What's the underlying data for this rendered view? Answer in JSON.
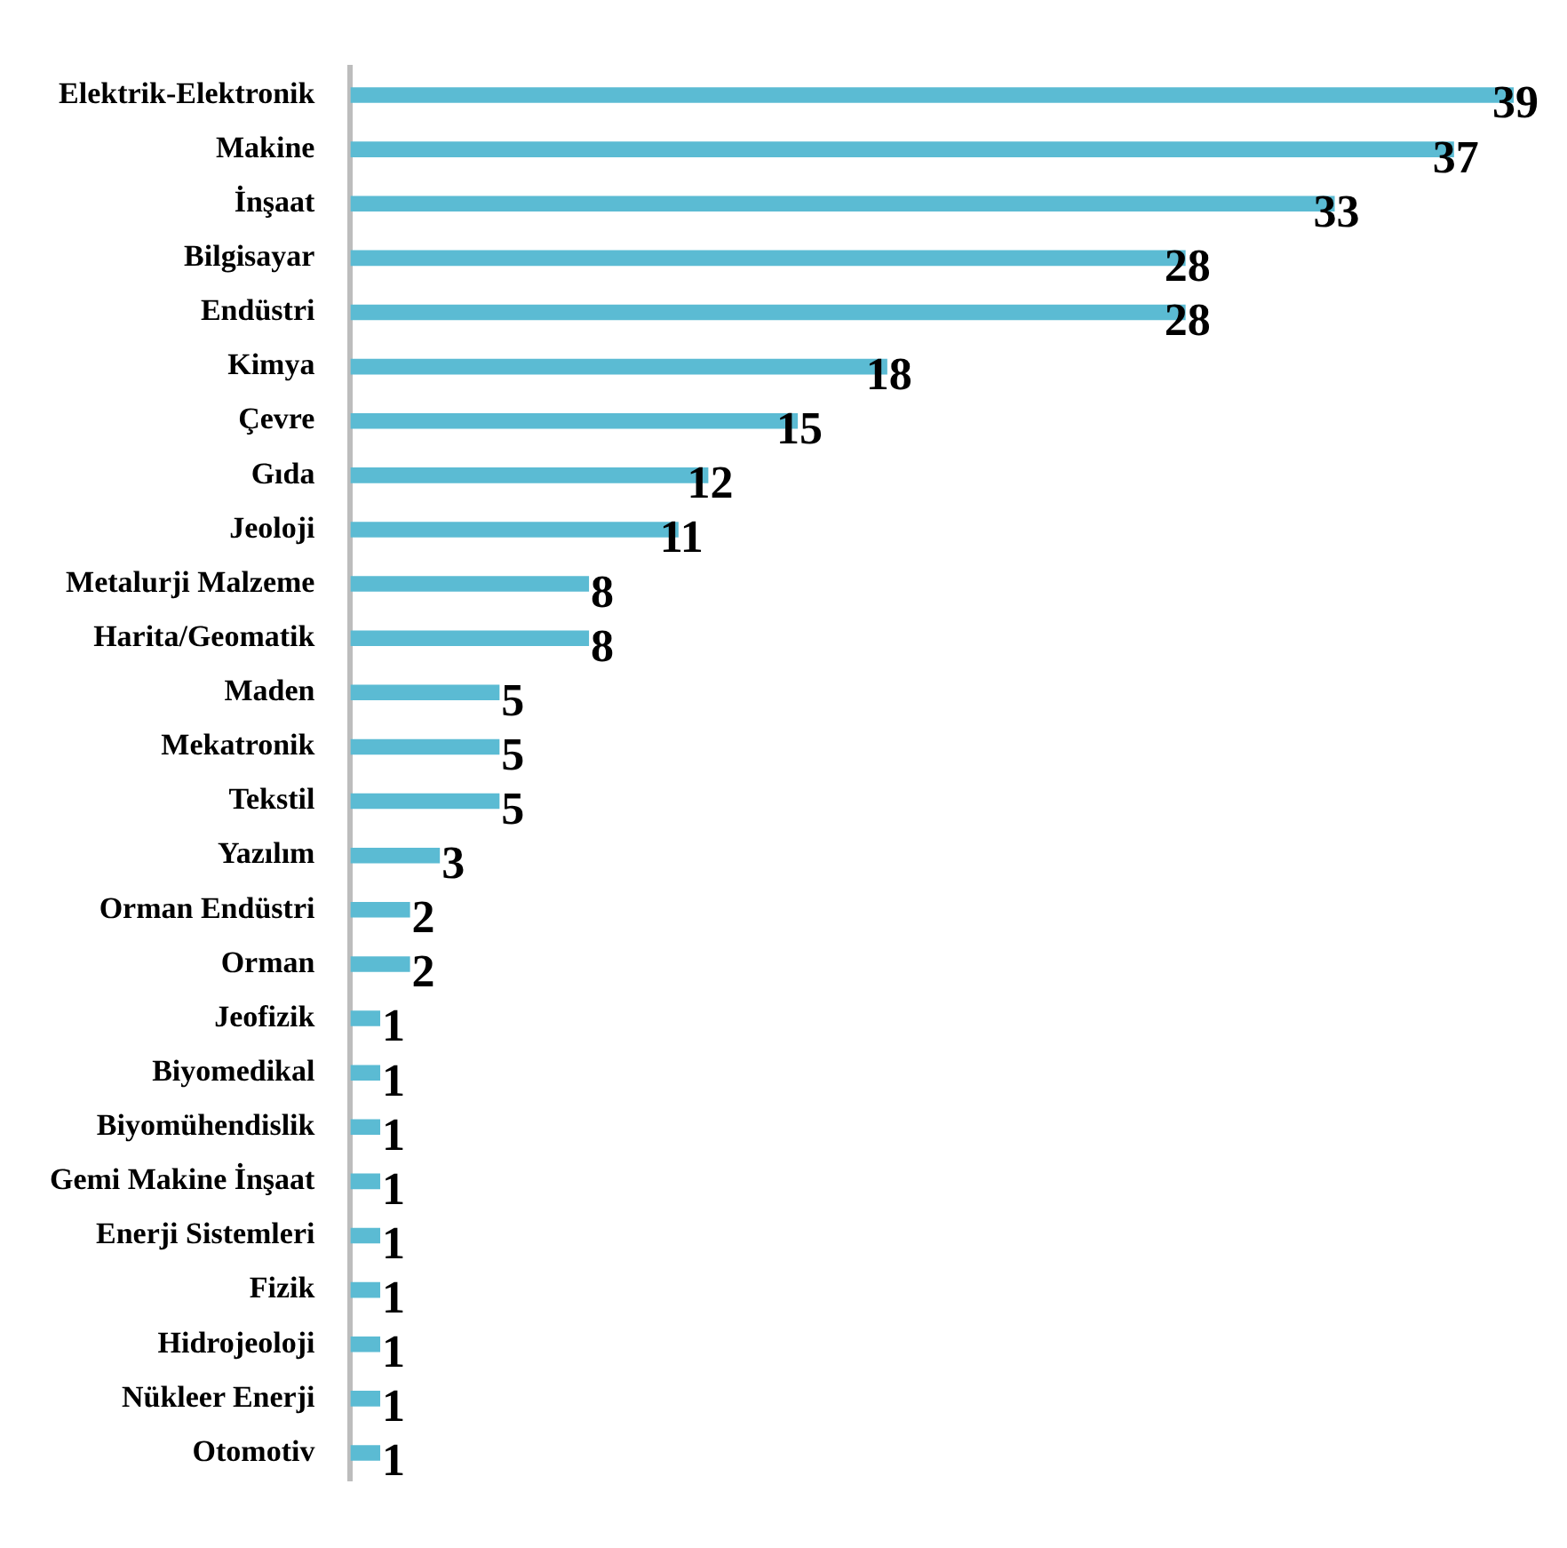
{
  "chart_data": {
    "type": "bar",
    "orientation": "horizontal",
    "categories": [
      "Elektrik-Elektronik",
      "Makine",
      "İnşaat",
      "Bilgisayar",
      "Endüstri",
      "Kimya",
      "Çevre",
      "Gıda",
      "Jeoloji",
      "Metalurji Malzeme",
      "Harita/Geomatik",
      "Maden",
      "Mekatronik",
      "Tekstil",
      "Yazılım",
      "Orman Endüstri",
      "Orman",
      "Jeofizik",
      "Biyomedikal",
      "Biyomühendislik",
      "Gemi Makine İnşaat",
      "Enerji Sistemleri",
      "Fizik",
      "Hidrojeoloji",
      "Nükleer Enerji",
      "Otomotiv"
    ],
    "values": [
      39,
      37,
      33,
      28,
      28,
      18,
      15,
      12,
      11,
      8,
      8,
      5,
      5,
      5,
      3,
      2,
      2,
      1,
      1,
      1,
      1,
      1,
      1,
      1,
      1,
      1
    ],
    "color": "#5bbbd3",
    "data_labels": true,
    "legend": false
  }
}
